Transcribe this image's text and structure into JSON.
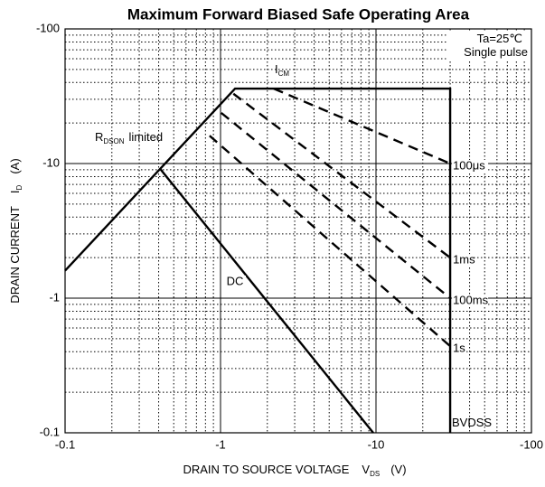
{
  "chart_data": {
    "type": "line",
    "title": "Maximum Forward Biased Safe Operating Area",
    "x_label": {
      "text": "DRAIN TO SOURCE VOLTAGE",
      "symbol": "V",
      "sub": "DS",
      "unit": "(V)"
    },
    "y_label": {
      "text": "DRAIN CURRENT",
      "symbol": "I",
      "sub": "D",
      "unit": "(A)"
    },
    "log_x": true,
    "log_y": true,
    "grid": true,
    "xlim": [
      -0.1,
      -100
    ],
    "ylim": [
      -0.1,
      -100
    ],
    "xticks": [
      -0.1,
      -1,
      -10,
      -100
    ],
    "yticks": [
      -0.1,
      -1,
      -10,
      -100
    ],
    "color": "#000000",
    "series": [
      {
        "x": [
          -0.1,
          -1.24,
          -30,
          -30
        ],
        "values": [
          -1.6,
          -36,
          -36,
          -0.1
        ],
        "dashed": false
      },
      {
        "name": "DC",
        "x": [
          -0.41,
          -9.6
        ],
        "values": [
          -9.1,
          -0.1
        ],
        "dashed": false
      },
      {
        "name": "100μs",
        "x": [
          -2.2,
          -30
        ],
        "values": [
          -36,
          -10
        ],
        "dashed": true
      },
      {
        "name": "1ms",
        "x": [
          -1.21,
          -30
        ],
        "values": [
          -33,
          -2.0
        ],
        "dashed": true
      },
      {
        "name": "100ms",
        "x": [
          -1.01,
          -30
        ],
        "values": [
          -23.8,
          -1.0
        ],
        "dashed": true
      },
      {
        "name": "1s",
        "x": [
          -0.85,
          -30
        ],
        "values": [
          -16.1,
          -0.44
        ],
        "dashed": true
      }
    ],
    "annotations": [
      {
        "text": "R",
        "sub": "DSON",
        "after": "limited"
      },
      {
        "text": "I",
        "sub": "CM"
      },
      {
        "text": "BVDSS"
      },
      {
        "text": "Ta=25℃"
      },
      {
        "text": "Single pulse"
      }
    ]
  }
}
